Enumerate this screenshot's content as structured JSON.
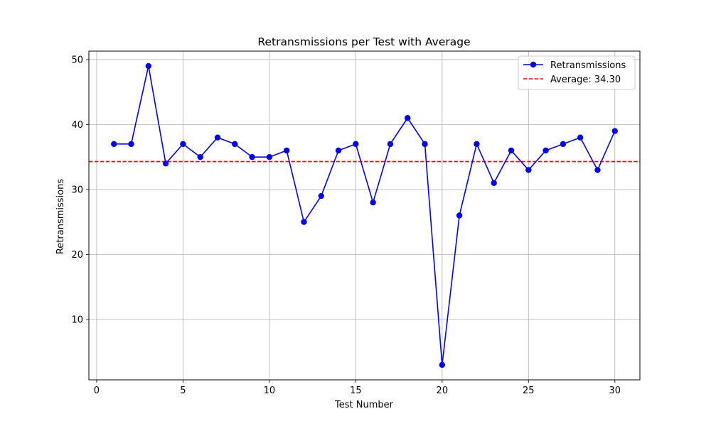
{
  "chart_data": {
    "type": "line",
    "title": "Retransmissions per Test with Average",
    "xlabel": "Test Number",
    "ylabel": "Retransmissions",
    "xlim": [
      -0.45,
      31.45
    ],
    "ylim": [
      0.7,
      51.3
    ],
    "xticks": [
      0,
      5,
      10,
      15,
      20,
      25,
      30
    ],
    "yticks": [
      10,
      20,
      30,
      40,
      50
    ],
    "grid": true,
    "legend_position": "top-right",
    "x": [
      1,
      2,
      3,
      4,
      5,
      6,
      7,
      8,
      9,
      10,
      11,
      12,
      13,
      14,
      15,
      16,
      17,
      18,
      19,
      20,
      21,
      22,
      23,
      24,
      25,
      26,
      27,
      28,
      29,
      30
    ],
    "series": [
      {
        "name": "Retransmissions",
        "color": "#0000ff",
        "marker": "circle",
        "values": [
          37,
          37,
          49,
          34,
          37,
          35,
          38,
          37,
          35,
          35,
          36,
          25,
          29,
          36,
          37,
          28,
          37,
          41,
          37,
          3,
          26,
          37,
          31,
          36,
          33,
          36,
          37,
          38,
          33,
          39
        ]
      }
    ],
    "reference_lines": [
      {
        "name": "Average: 34.30",
        "value": 34.3,
        "color": "#ff0000",
        "style": "dashed"
      }
    ]
  }
}
